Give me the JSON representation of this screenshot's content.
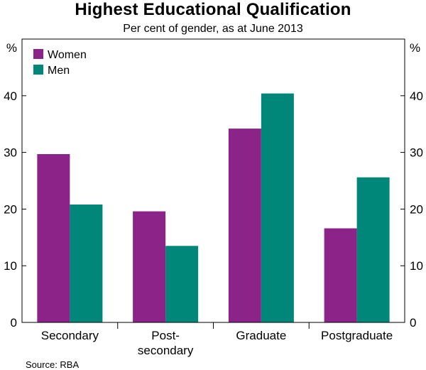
{
  "chart_data": {
    "type": "bar",
    "title": "Highest Educational Qualification",
    "subtitle": "Per cent of gender, as at June 2013",
    "categories": [
      [
        "Secondary"
      ],
      [
        "Post-",
        "secondary"
      ],
      [
        "Graduate"
      ],
      [
        "Postgraduate"
      ]
    ],
    "series": [
      {
        "name": "Women",
        "color": "#8b2389",
        "values": [
          29.7,
          19.6,
          34.2,
          16.6
        ]
      },
      {
        "name": "Men",
        "color": "#00877a",
        "values": [
          20.8,
          13.5,
          40.4,
          25.6
        ]
      }
    ],
    "ylim": [
      0,
      50
    ],
    "yticks": [
      0,
      10,
      20,
      30,
      40
    ],
    "left_unit": "%",
    "right_unit": "%",
    "legend_position": "top-left",
    "grid": false
  },
  "source": "Source: RBA"
}
